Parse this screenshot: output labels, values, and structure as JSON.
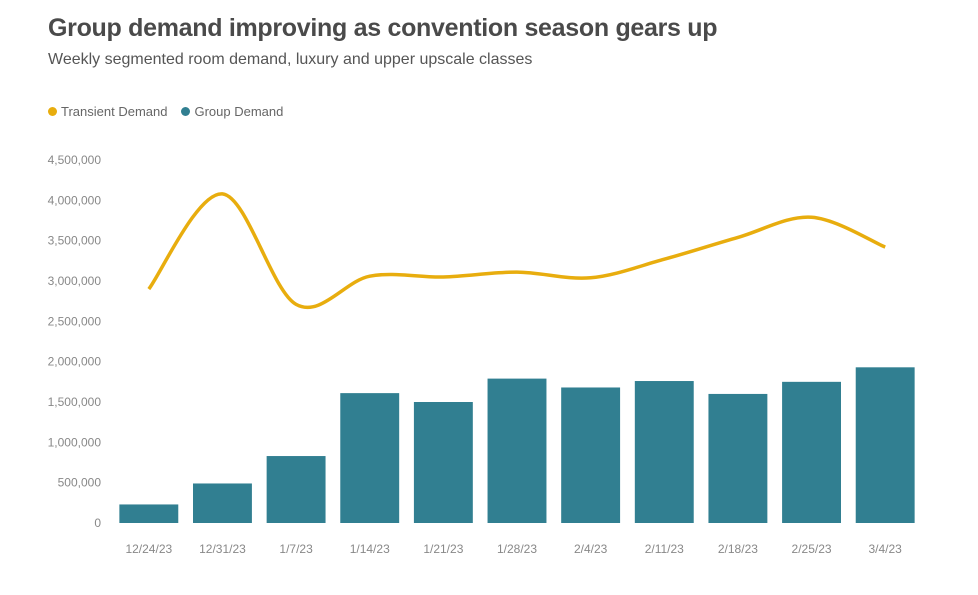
{
  "title": "Group demand improving as convention season gears up",
  "subtitle": "Weekly segmented room demand, luxury and upper upscale classes",
  "colors": {
    "transient": "#e8ad0e",
    "group": "#317f91",
    "grid_text": "#888888"
  },
  "legend": [
    {
      "name": "Transient Demand",
      "color_key": "transient"
    },
    {
      "name": "Group Demand",
      "color_key": "group"
    }
  ],
  "chart_data": {
    "type": "bar",
    "title": "Group demand improving as convention season gears up",
    "subtitle": "Weekly segmented room demand, luxury and upper upscale classes",
    "xlabel": "",
    "ylabel": "",
    "ylim": [
      0,
      4500000
    ],
    "y_ticks": [
      0,
      500000,
      1000000,
      1500000,
      2000000,
      2500000,
      3000000,
      3500000,
      4000000,
      4500000
    ],
    "y_tick_labels": [
      "0",
      "500,000",
      "1,000,000",
      "1,500,000",
      "2,000,000",
      "2,500,000",
      "3,000,000",
      "3,500,000",
      "4,000,000",
      "4,500,000"
    ],
    "categories": [
      "12/24/23",
      "12/31/23",
      "1/7/23",
      "1/14/23",
      "1/21/23",
      "1/28/23",
      "2/4/23",
      "2/11/23",
      "2/18/23",
      "2/25/23",
      "3/4/23"
    ],
    "legend_position": "top-left",
    "grid": false,
    "series": [
      {
        "name": "Transient Demand",
        "type": "line",
        "values": [
          2900000,
          4080000,
          2710000,
          3060000,
          3050000,
          3110000,
          3040000,
          3270000,
          3540000,
          3790000,
          3420000
        ]
      },
      {
        "name": "Group Demand",
        "type": "bar",
        "values": [
          230000,
          490000,
          830000,
          1610000,
          1500000,
          1790000,
          1680000,
          1760000,
          1600000,
          1750000,
          1930000
        ]
      }
    ]
  }
}
